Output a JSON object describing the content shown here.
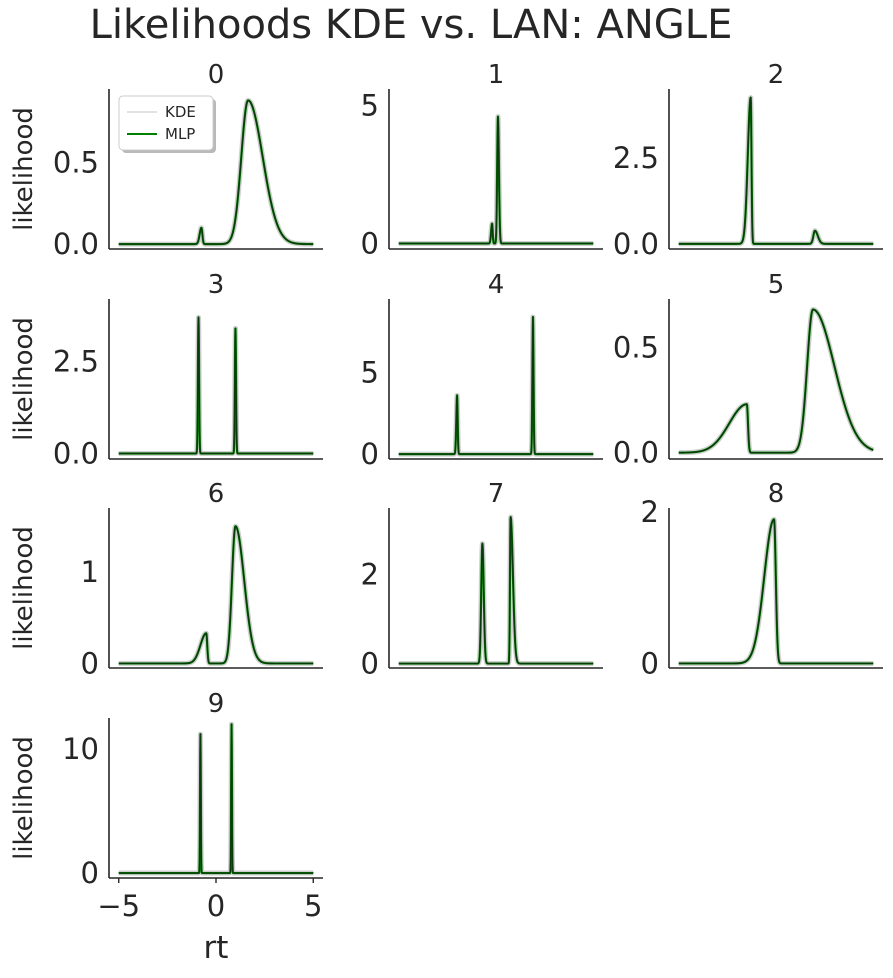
{
  "figure_title": "Likelihoods KDE vs. LAN: ANGLE",
  "legend": {
    "kde_label": "KDE",
    "mlp_label": "MLP"
  },
  "colors": {
    "kde": "#bdbdbd",
    "mlp": "#008000",
    "overlay": "#0b2e0b",
    "axis": "#262626"
  },
  "chart_data": [
    {
      "type": "line",
      "title": "0",
      "ylabel": "likelihood",
      "yticks": [
        "0.0",
        "0.5"
      ],
      "ytick_values": [
        0,
        0.5
      ],
      "ylim": [
        -0.03,
        0.95
      ],
      "xlim": [
        -5.5,
        5.5
      ],
      "peaks": [
        {
          "loc": -0.75,
          "h": 0.1,
          "wl": 0.09,
          "wr": 0.05
        },
        {
          "loc": 1.65,
          "h": 0.88,
          "wl": 0.35,
          "wr": 0.75
        }
      ],
      "legend_visible": true
    },
    {
      "type": "line",
      "title": "1",
      "ylabel": "",
      "yticks": [
        "0",
        "5"
      ],
      "ytick_values": [
        0,
        5
      ],
      "ylim": [
        -0.2,
        5.6
      ],
      "xlim": [
        -5.5,
        5.5
      ],
      "peaks": [
        {
          "loc": -0.2,
          "h": 0.72,
          "wl": 0.05,
          "wr": 0.03
        },
        {
          "loc": 0.1,
          "h": 4.6,
          "wl": 0.04,
          "wr": 0.05
        }
      ]
    },
    {
      "type": "line",
      "title": "2",
      "ylabel": "",
      "yticks": [
        "0.0",
        "2.5"
      ],
      "ytick_values": [
        0,
        2.5
      ],
      "ylim": [
        -0.15,
        4.5
      ],
      "xlim": [
        -5.5,
        5.5
      ],
      "peaks": [
        {
          "loc": -1.3,
          "h": 4.25,
          "wl": 0.15,
          "wr": 0.04
        },
        {
          "loc": 2.0,
          "h": 0.38,
          "wl": 0.08,
          "wr": 0.15
        }
      ]
    },
    {
      "type": "line",
      "title": "3",
      "ylabel": "likelihood",
      "yticks": [
        "0.0",
        "2.5"
      ],
      "ytick_values": [
        0,
        2.5
      ],
      "ylim": [
        -0.15,
        4.2
      ],
      "xlim": [
        -5.5,
        5.5
      ],
      "peaks": [
        {
          "loc": -0.9,
          "h": 3.7,
          "wl": 0.03,
          "wr": 0.03
        },
        {
          "loc": 1.0,
          "h": 3.4,
          "wl": 0.03,
          "wr": 0.03
        }
      ]
    },
    {
      "type": "line",
      "title": "4",
      "ylabel": "",
      "yticks": [
        "0",
        "5"
      ],
      "ytick_values": [
        0,
        5
      ],
      "ylim": [
        -0.3,
        9.5
      ],
      "xlim": [
        -5.5,
        5.5
      ],
      "peaks": [
        {
          "loc": -2.0,
          "h": 3.6,
          "wl": 0.04,
          "wr": 0.03
        },
        {
          "loc": 1.9,
          "h": 8.4,
          "wl": 0.03,
          "wr": 0.03
        }
      ]
    },
    {
      "type": "line",
      "title": "5",
      "ylabel": "",
      "yticks": [
        "0.0",
        "0.5"
      ],
      "ytick_values": [
        0,
        0.5
      ],
      "ylim": [
        -0.03,
        0.73
      ],
      "xlim": [
        -5.5,
        5.5
      ],
      "peaks": [
        {
          "loc": -1.5,
          "h": 0.23,
          "wl": 0.9,
          "wr": 0.06
        },
        {
          "loc": 1.9,
          "h": 0.68,
          "wl": 0.3,
          "wr": 1.1
        }
      ]
    },
    {
      "type": "line",
      "title": "6",
      "ylabel": "likelihood",
      "yticks": [
        "0",
        "1"
      ],
      "ytick_values": [
        0,
        1
      ],
      "ylim": [
        -0.05,
        1.7
      ],
      "xlim": [
        -5.5,
        5.5
      ],
      "peaks": [
        {
          "loc": -0.5,
          "h": 0.33,
          "wl": 0.3,
          "wr": 0.05
        },
        {
          "loc": 1.0,
          "h": 1.5,
          "wl": 0.18,
          "wr": 0.45
        }
      ]
    },
    {
      "type": "line",
      "title": "7",
      "ylabel": "",
      "yticks": [
        "0",
        "2"
      ],
      "ytick_values": [
        0,
        2
      ],
      "ylim": [
        -0.1,
        3.5
      ],
      "xlim": [
        -5.5,
        5.5
      ],
      "peaks": [
        {
          "loc": -0.7,
          "h": 2.7,
          "wl": 0.06,
          "wr": 0.07
        },
        {
          "loc": 0.75,
          "h": 3.3,
          "wl": 0.03,
          "wr": 0.12
        }
      ]
    },
    {
      "type": "line",
      "title": "8",
      "ylabel": "",
      "yticks": [
        "0",
        "2"
      ],
      "ytick_values": [
        0,
        2
      ],
      "ylim": [
        -0.06,
        2.05
      ],
      "xlim": [
        -5.5,
        5.5
      ],
      "peaks": [
        {
          "loc": -0.1,
          "h": 1.9,
          "wl": 0.5,
          "wr": 0.09
        }
      ]
    },
    {
      "type": "line",
      "title": "9",
      "ylabel": "likelihood",
      "yticks": [
        "0",
        "10"
      ],
      "ytick_values": [
        0,
        10
      ],
      "ylim": [
        -0.4,
        12.5
      ],
      "xlim": [
        -5.5,
        5.5
      ],
      "xticks": [
        "−5",
        "0",
        "5"
      ],
      "xtick_values": [
        -5,
        0,
        5
      ],
      "xlabel": "rt",
      "peaks": [
        {
          "loc": -0.8,
          "h": 11.2,
          "wl": 0.02,
          "wr": 0.02
        },
        {
          "loc": 0.8,
          "h": 12.0,
          "wl": 0.02,
          "wr": 0.02
        }
      ]
    }
  ]
}
